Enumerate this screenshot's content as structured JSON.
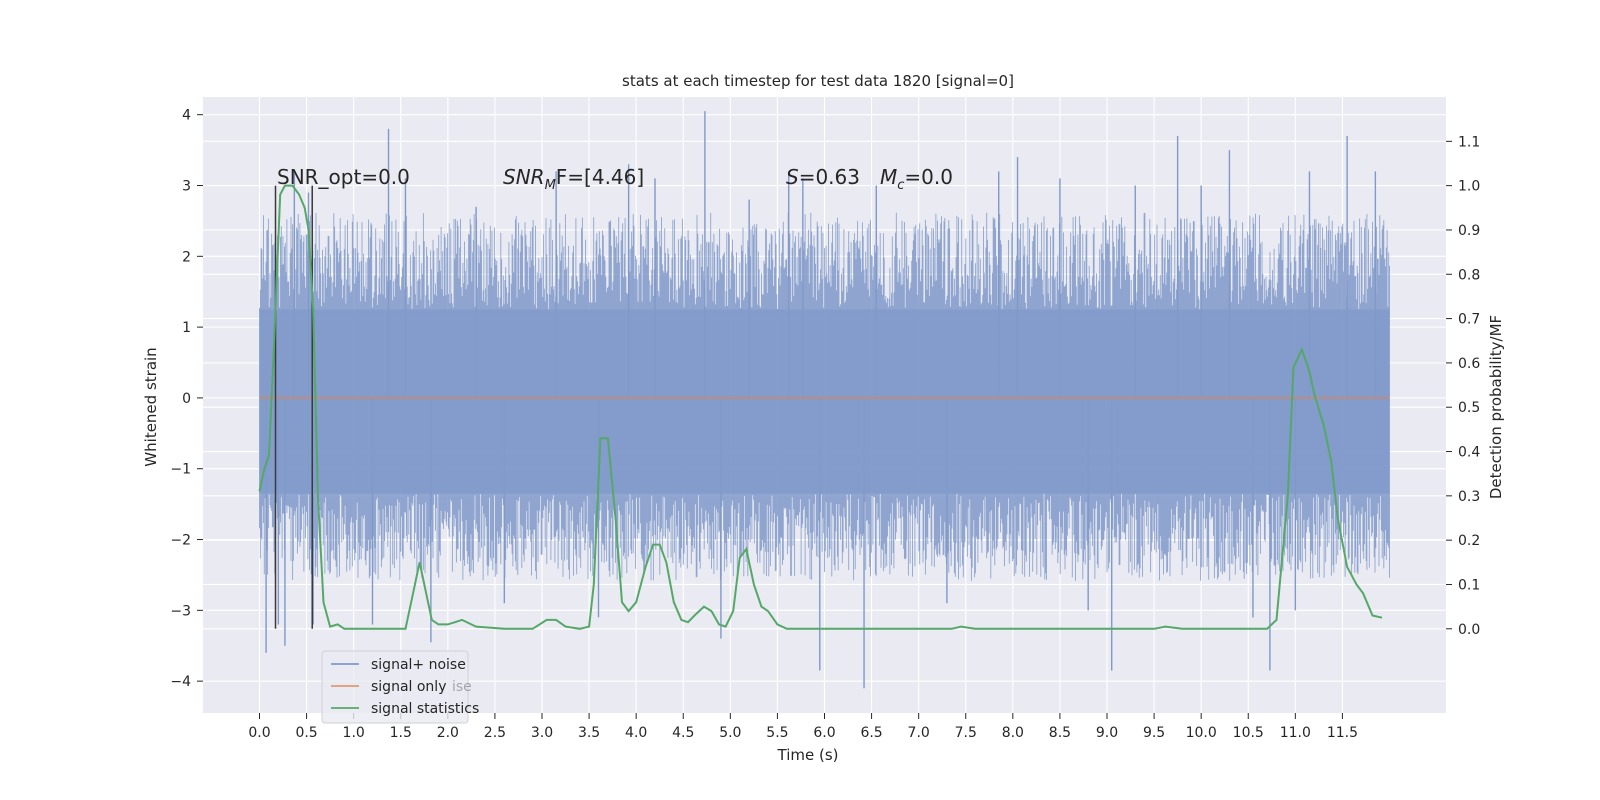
{
  "chart_data": {
    "type": "line",
    "title": "stats at each timestep for test data 1820 [signal=0]",
    "xlabel": "Time (s)",
    "ylabel": "Whitened strain",
    "y2label": "Detection probability/MF",
    "xlim": [
      -0.6,
      12.6
    ],
    "ylim": [
      -4.45,
      4.25
    ],
    "y2lim": [
      -0.19,
      1.2
    ],
    "x_ticks": [
      0.0,
      0.5,
      1.0,
      1.5,
      2.0,
      2.5,
      3.0,
      3.5,
      4.0,
      4.5,
      5.0,
      5.5,
      6.0,
      6.5,
      7.0,
      7.5,
      8.0,
      8.5,
      9.0,
      9.5,
      10.0,
      10.5,
      11.0,
      11.5
    ],
    "x_tick_labels": [
      "0.0",
      "0.5",
      "1.0",
      "1.5",
      "2.0",
      "2.5",
      "3.0",
      "3.5",
      "4.0",
      "4.5",
      "5.0",
      "5.5",
      "6.0",
      "6.5",
      "7.0",
      "7.5",
      "8.0",
      "8.5",
      "9.0",
      "9.5",
      "10.0",
      "10.5",
      "11.0",
      "11.5"
    ],
    "y_ticks": [
      4,
      3,
      2,
      1,
      0,
      -1,
      -2,
      -3,
      -4
    ],
    "y_tick_labels": [
      "4",
      "3",
      "2",
      "1",
      "0",
      "−1",
      "−2",
      "−3",
      "−4"
    ],
    "y2_ticks": [
      1.1,
      1.0,
      0.9,
      0.8,
      0.7,
      0.6,
      0.5,
      0.4,
      0.3,
      0.2,
      0.1,
      0.0
    ],
    "y2_tick_labels": [
      "1.1",
      "1.0",
      "0.9",
      "0.8",
      "0.7",
      "0.6",
      "0.5",
      "0.4",
      "0.3",
      "0.2",
      "0.1",
      "0.0"
    ],
    "grid": true,
    "legend_position": "lower-left",
    "legend": [
      "signal+ noise",
      "signal only",
      "signal statistics"
    ],
    "legend_overlap_text": "ise",
    "colors": {
      "noise": "#7f99c9",
      "signal": "#dd8452",
      "stats": "#55a868",
      "vline": "#3a3a3a",
      "background": "#eaeaf2",
      "grid": "#ffffff"
    },
    "annotations": {
      "snr_opt": "SNR_opt=0.0",
      "snr_mf_label": "SNR",
      "snr_mf_sub": "M",
      "snr_mf_suffix": "F=[4.46]",
      "s_label": "S",
      "s_value": "=0.63",
      "mc_label": "M",
      "mc_sub": "c",
      "mc_value": "=0.0"
    },
    "vertical_lines_x": [
      0.17,
      0.56
    ],
    "noise": {
      "x_range": [
        0.0,
        12.0
      ],
      "envelope_upper": 1.25,
      "envelope_lower": -1.35,
      "typical_upper": 2.3,
      "typical_lower": -2.3,
      "spikes": [
        {
          "x": 0.07,
          "y": -3.6
        },
        {
          "x": 0.2,
          "y": -3.2
        },
        {
          "x": 0.27,
          "y": -3.5
        },
        {
          "x": 0.37,
          "y": 3.2
        },
        {
          "x": 0.52,
          "y": 2.9
        },
        {
          "x": 0.57,
          "y": -3.2
        },
        {
          "x": 1.2,
          "y": -3.2
        },
        {
          "x": 1.37,
          "y": 3.8
        },
        {
          "x": 1.55,
          "y": 3.1
        },
        {
          "x": 1.82,
          "y": -3.45
        },
        {
          "x": 2.3,
          "y": 2.7
        },
        {
          "x": 3.15,
          "y": 3.2
        },
        {
          "x": 3.6,
          "y": -3.1
        },
        {
          "x": 3.92,
          "y": 3.3
        },
        {
          "x": 4.2,
          "y": 3.1
        },
        {
          "x": 4.73,
          "y": 4.05
        },
        {
          "x": 4.9,
          "y": -3.4
        },
        {
          "x": 5.2,
          "y": 2.8
        },
        {
          "x": 5.62,
          "y": 3.2
        },
        {
          "x": 5.77,
          "y": 3.1
        },
        {
          "x": 5.95,
          "y": -3.85
        },
        {
          "x": 6.42,
          "y": -4.1
        },
        {
          "x": 6.55,
          "y": 3.0
        },
        {
          "x": 7.85,
          "y": 3.2
        },
        {
          "x": 8.05,
          "y": 3.4
        },
        {
          "x": 8.5,
          "y": 3.1
        },
        {
          "x": 9.05,
          "y": -3.85
        },
        {
          "x": 9.3,
          "y": 3.0
        },
        {
          "x": 9.75,
          "y": 3.7
        },
        {
          "x": 10.3,
          "y": 3.5
        },
        {
          "x": 10.55,
          "y": -3.1
        },
        {
          "x": 10.73,
          "y": -3.85
        },
        {
          "x": 11.15,
          "y": 3.2
        },
        {
          "x": 11.55,
          "y": 3.7
        },
        {
          "x": 11.85,
          "y": 3.2
        },
        {
          "x": 11.0,
          "y": -3.0
        },
        {
          "x": 2.6,
          "y": -2.9
        },
        {
          "x": 7.3,
          "y": -2.9
        },
        {
          "x": 8.8,
          "y": -3.0
        },
        {
          "x": 10.0,
          "y": 3.0
        }
      ]
    },
    "signal_only": {
      "x": [
        0.0,
        12.0
      ],
      "y": [
        0.0,
        0.0
      ]
    },
    "series": [
      {
        "name": "signal statistics",
        "axis": "y2",
        "x": [
          0.0,
          0.05,
          0.1,
          0.15,
          0.22,
          0.27,
          0.35,
          0.42,
          0.48,
          0.52,
          0.57,
          0.62,
          0.68,
          0.75,
          0.83,
          0.9,
          1.0,
          1.1,
          1.3,
          1.55,
          1.62,
          1.7,
          1.75,
          1.83,
          1.9,
          2.0,
          2.15,
          2.3,
          2.6,
          2.9,
          3.05,
          3.15,
          3.25,
          3.4,
          3.5,
          3.55,
          3.62,
          3.7,
          3.78,
          3.85,
          3.92,
          4.0,
          4.1,
          4.18,
          4.25,
          4.32,
          4.4,
          4.48,
          4.55,
          4.62,
          4.72,
          4.8,
          4.88,
          4.95,
          5.03,
          5.1,
          5.17,
          5.25,
          5.33,
          5.4,
          5.5,
          5.6,
          5.8,
          6.2,
          7.0,
          7.35,
          7.45,
          7.6,
          8.3,
          9.5,
          9.62,
          9.8,
          10.1,
          10.7,
          10.8,
          10.92,
          10.98,
          11.07,
          11.15,
          11.2,
          11.3,
          11.38,
          11.45,
          11.55,
          11.65,
          11.72,
          11.82,
          11.92
        ],
        "y": [
          0.31,
          0.36,
          0.39,
          0.62,
          0.98,
          1.0,
          1.0,
          0.98,
          0.95,
          0.9,
          0.72,
          0.3,
          0.06,
          0.005,
          0.01,
          0.0,
          0.0,
          0.0,
          0.0,
          0.0,
          0.07,
          0.15,
          0.1,
          0.02,
          0.01,
          0.01,
          0.02,
          0.005,
          0.0,
          0.0,
          0.02,
          0.02,
          0.005,
          0.0,
          0.005,
          0.1,
          0.43,
          0.43,
          0.25,
          0.06,
          0.04,
          0.06,
          0.14,
          0.19,
          0.19,
          0.15,
          0.06,
          0.02,
          0.015,
          0.03,
          0.05,
          0.04,
          0.01,
          0.005,
          0.04,
          0.16,
          0.18,
          0.1,
          0.05,
          0.04,
          0.01,
          0.0,
          0.0,
          0.0,
          0.0,
          0.0,
          0.005,
          0.0,
          0.0,
          0.0,
          0.005,
          0.0,
          0.0,
          0.0,
          0.02,
          0.3,
          0.59,
          0.63,
          0.58,
          0.53,
          0.46,
          0.38,
          0.25,
          0.14,
          0.1,
          0.08,
          0.03,
          0.025
        ]
      }
    ]
  }
}
